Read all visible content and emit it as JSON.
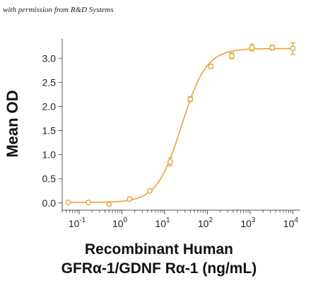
{
  "permission_text": "with permission from R&D Systems",
  "chart_data": {
    "type": "scatter",
    "title": "",
    "xlabel_line1": "Recombinant Human",
    "xlabel_line2": "GFRα-1/GDNF Rα-1 (ng/mL)",
    "ylabel": "Mean OD",
    "x_scale": "log",
    "xlim": [
      0.04,
      15000
    ],
    "ylim": [
      -0.15,
      3.4
    ],
    "x_ticks": [
      {
        "base": "10",
        "exp": "-1",
        "value": 0.1
      },
      {
        "base": "10",
        "exp": "0",
        "value": 1
      },
      {
        "base": "10",
        "exp": "1",
        "value": 10
      },
      {
        "base": "10",
        "exp": "2",
        "value": 100
      },
      {
        "base": "10",
        "exp": "3",
        "value": 1000
      },
      {
        "base": "10",
        "exp": "4",
        "value": 10000
      }
    ],
    "y_ticks": [
      "0.0",
      "0.5",
      "1.0",
      "1.5",
      "2.0",
      "2.5",
      "3.0"
    ],
    "grid": false,
    "color": "#E8A33A",
    "points": [
      {
        "x": 0.055,
        "y": 0.01,
        "err": 0.01
      },
      {
        "x": 0.165,
        "y": 0.01,
        "err": 0.01
      },
      {
        "x": 0.5,
        "y": -0.03,
        "err": 0.02
      },
      {
        "x": 1.5,
        "y": 0.08,
        "err": 0.03
      },
      {
        "x": 4.5,
        "y": 0.25,
        "err": 0.03
      },
      {
        "x": 13.5,
        "y": 0.85,
        "err": 0.08
      },
      {
        "x": 40,
        "y": 2.15,
        "err": 0.05
      },
      {
        "x": 120,
        "y": 2.83,
        "err": 0.04
      },
      {
        "x": 370,
        "y": 3.05,
        "err": 0.06
      },
      {
        "x": 1110,
        "y": 3.22,
        "err": 0.07
      },
      {
        "x": 3330,
        "y": 3.22,
        "err": 0.05
      },
      {
        "x": 10000,
        "y": 3.2,
        "err": 0.12
      }
    ],
    "fit": {
      "bottom": 0.01,
      "top": 3.2,
      "ec50": 25,
      "hill": 1.5
    }
  }
}
